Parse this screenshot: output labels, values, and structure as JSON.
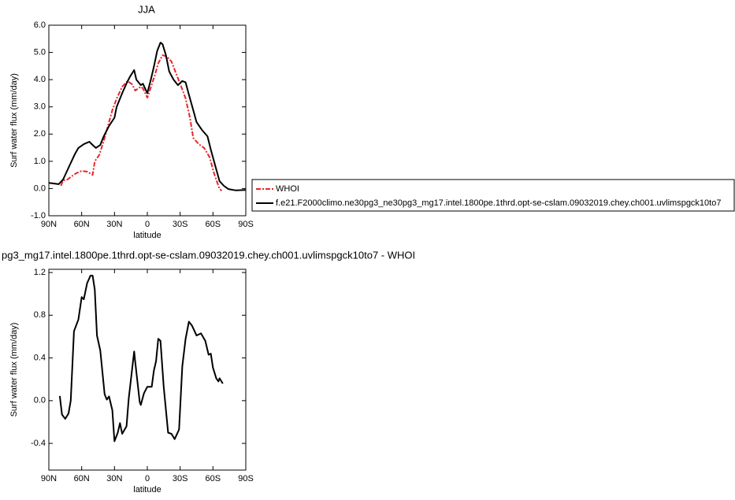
{
  "chart_data": [
    {
      "type": "line",
      "title": "JJA",
      "xlabel": "latitude",
      "ylabel": "Surf water flux (mm/day)",
      "xlim": [
        90,
        -90
      ],
      "xticks": [
        {
          "value": 90,
          "label": "90N"
        },
        {
          "value": 60,
          "label": "60N"
        },
        {
          "value": 30,
          "label": "30N"
        },
        0,
        {
          "value": -30,
          "label": "30S"
        },
        {
          "value": -60,
          "label": "60S"
        },
        {
          "value": -90,
          "label": "90S"
        }
      ],
      "ylim": [
        -1,
        6
      ],
      "yticks": [
        {
          "value": -1,
          "label": "-1.0"
        },
        {
          "value": 0,
          "label": "0.0"
        },
        {
          "value": 1,
          "label": "1.0"
        },
        {
          "value": 2,
          "label": "2.0"
        },
        {
          "value": 3,
          "label": "3.0"
        },
        {
          "value": 4,
          "label": "4.0"
        },
        {
          "value": 5,
          "label": "5.0"
        },
        {
          "value": 6,
          "label": "6.0"
        }
      ],
      "legend": "right",
      "series": [
        {
          "name": "WHOI",
          "color": "#e8262b",
          "dashed": true,
          "x": [
            79,
            77,
            73,
            68,
            65,
            60,
            55,
            50,
            48,
            44,
            40,
            36,
            32,
            28,
            23,
            18,
            14,
            11,
            6,
            4,
            0,
            -3,
            -7,
            -10,
            -14,
            -18,
            -22,
            -26,
            -31,
            -35,
            -39,
            -42,
            -47,
            -52,
            -57,
            -61,
            -66,
            -68
          ],
          "values": [
            0.1,
            0.3,
            0.33,
            0.48,
            0.56,
            0.65,
            0.62,
            0.5,
            1.0,
            1.23,
            1.72,
            2.3,
            2.88,
            3.3,
            3.74,
            3.95,
            3.83,
            3.6,
            3.74,
            3.68,
            3.34,
            3.69,
            4.18,
            4.6,
            4.9,
            4.84,
            4.67,
            4.26,
            3.74,
            3.31,
            2.59,
            1.86,
            1.63,
            1.49,
            1.14,
            0.56,
            -0.02,
            -0.08
          ]
        },
        {
          "name": "f.e21.F2000climo.ne30pg3_ne30pg3_mg17.intel.1800pe.1thrd.opt-se-cslam.09032019.chey.ch001.uvlimspgck10to7",
          "color": "#000000",
          "dashed": false,
          "x": [
            90,
            81,
            77,
            71,
            66,
            63,
            58,
            53,
            50,
            47,
            43,
            40,
            35,
            30,
            28,
            23,
            19,
            16,
            12,
            10,
            6,
            4,
            0,
            -3,
            -6,
            -9,
            -12,
            -14,
            -17,
            -20,
            -24,
            -28,
            -32,
            -35,
            -38,
            -42,
            -45,
            -50,
            -55,
            -58,
            -62,
            -66,
            -70,
            -74,
            -81,
            -90
          ],
          "values": [
            0.21,
            0.16,
            0.33,
            0.85,
            1.28,
            1.49,
            1.63,
            1.72,
            1.6,
            1.49,
            1.6,
            1.9,
            2.3,
            2.6,
            3.0,
            3.5,
            3.86,
            4.1,
            4.35,
            4.0,
            3.8,
            3.85,
            3.5,
            3.97,
            4.47,
            5.05,
            5.36,
            5.3,
            4.9,
            4.3,
            4.0,
            3.8,
            3.95,
            3.9,
            3.45,
            2.88,
            2.44,
            2.15,
            1.92,
            1.43,
            0.85,
            0.27,
            0.1,
            -0.02,
            -0.07,
            -0.05
          ]
        }
      ]
    },
    {
      "type": "line",
      "title": "pg3_mg17.intel.1800pe.1thrd.opt-se-cslam.09032019.chey.ch001.uvlimspgck10to7 - WHOI",
      "xlabel": "latitude",
      "ylabel": "Surf water flux (mm/day)",
      "xlim": [
        90,
        -90
      ],
      "xticks": [
        {
          "value": 90,
          "label": "90N"
        },
        {
          "value": 60,
          "label": "60N"
        },
        {
          "value": 30,
          "label": "30N"
        },
        0,
        {
          "value": -30,
          "label": "30S"
        },
        {
          "value": -60,
          "label": "60S"
        },
        {
          "value": -90,
          "label": "90S"
        }
      ],
      "ylim": [
        -0.65,
        1.23
      ],
      "yticks": [
        -0.4,
        {
          "value": 0,
          "label": "0.0"
        },
        0.4,
        0.8,
        1.2
      ],
      "series": [
        {
          "color": "#000000",
          "dashed": false,
          "x": [
            80,
            78,
            75,
            72,
            70,
            67,
            63,
            60,
            58,
            55,
            52,
            50,
            48,
            46,
            43,
            39,
            37,
            35,
            32,
            30,
            27,
            25,
            23,
            19,
            17,
            12,
            11,
            7,
            6,
            3,
            0,
            -4,
            -6,
            -8,
            -10,
            -12,
            -15,
            -19,
            -22,
            -25,
            -29,
            -32,
            -35,
            -38,
            -41,
            -45,
            -49,
            -53,
            -56,
            -58,
            -60,
            -63,
            -65,
            -66,
            -69
          ],
          "values": [
            0.044,
            -0.13,
            -0.17,
            -0.12,
            0.0,
            0.65,
            0.76,
            0.97,
            0.95,
            1.1,
            1.17,
            1.17,
            1.04,
            0.61,
            0.47,
            0.06,
            0.01,
            0.04,
            -0.09,
            -0.38,
            -0.3,
            -0.21,
            -0.31,
            -0.24,
            0.02,
            0.46,
            0.36,
            -0.01,
            -0.04,
            0.07,
            0.13,
            0.13,
            0.28,
            0.37,
            0.58,
            0.56,
            0.13,
            -0.3,
            -0.31,
            -0.36,
            -0.27,
            0.32,
            0.58,
            0.74,
            0.7,
            0.61,
            0.63,
            0.56,
            0.43,
            0.44,
            0.31,
            0.21,
            0.18,
            0.21,
            0.16
          ]
        }
      ]
    }
  ]
}
